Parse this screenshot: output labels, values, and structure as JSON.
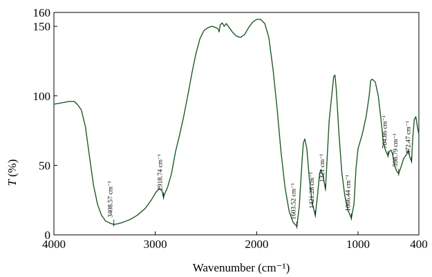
{
  "chart_data": {
    "type": "line",
    "title": "",
    "xlabel": "Wavenumber (cm⁻¹)",
    "ylabel_symbol": "T",
    "ylabel_unit": "(%)",
    "xlim": [
      4000,
      400
    ],
    "ylim": [
      0,
      160
    ],
    "x_ticks": [
      4000,
      3000,
      2000,
      1000,
      400
    ],
    "y_ticks": [
      0,
      50,
      100,
      150,
      160
    ],
    "grid": false,
    "series": [
      {
        "color": "#1f5a26",
        "points": [
          [
            4000,
            94
          ],
          [
            3920,
            95
          ],
          [
            3850,
            96
          ],
          [
            3800,
            96
          ],
          [
            3770,
            94
          ],
          [
            3730,
            90
          ],
          [
            3690,
            78
          ],
          [
            3650,
            57
          ],
          [
            3610,
            36
          ],
          [
            3570,
            22
          ],
          [
            3530,
            14
          ],
          [
            3490,
            10
          ],
          [
            3450,
            8.5
          ],
          [
            3408.57,
            7.5
          ],
          [
            3370,
            8
          ],
          [
            3320,
            9
          ],
          [
            3250,
            11
          ],
          [
            3180,
            14
          ],
          [
            3100,
            19
          ],
          [
            3040,
            25
          ],
          [
            2990,
            31
          ],
          [
            2960,
            33
          ],
          [
            2935,
            32
          ],
          [
            2918.74,
            27
          ],
          [
            2905,
            30
          ],
          [
            2880,
            34
          ],
          [
            2840,
            44
          ],
          [
            2800,
            60
          ],
          [
            2760,
            72
          ],
          [
            2720,
            85
          ],
          [
            2680,
            100
          ],
          [
            2640,
            116
          ],
          [
            2600,
            130
          ],
          [
            2560,
            141
          ],
          [
            2520,
            147
          ],
          [
            2480,
            149
          ],
          [
            2440,
            150
          ],
          [
            2400,
            149
          ],
          [
            2380,
            148
          ],
          [
            2370,
            146
          ],
          [
            2360,
            151
          ],
          [
            2340,
            152.5
          ],
          [
            2320,
            150
          ],
          [
            2300,
            152
          ],
          [
            2280,
            150
          ],
          [
            2240,
            146
          ],
          [
            2200,
            143
          ],
          [
            2160,
            142
          ],
          [
            2120,
            144
          ],
          [
            2080,
            149
          ],
          [
            2040,
            153
          ],
          [
            2000,
            155
          ],
          [
            1960,
            155
          ],
          [
            1920,
            152
          ],
          [
            1880,
            142
          ],
          [
            1840,
            120
          ],
          [
            1800,
            92
          ],
          [
            1760,
            60
          ],
          [
            1720,
            34
          ],
          [
            1680,
            17
          ],
          [
            1640,
            9
          ],
          [
            1603.52,
            6
          ],
          [
            1580,
            20
          ],
          [
            1555,
            50
          ],
          [
            1540,
            66
          ],
          [
            1525,
            69
          ],
          [
            1505,
            62
          ],
          [
            1480,
            40
          ],
          [
            1450,
            22
          ],
          [
            1421.28,
            14
          ],
          [
            1400,
            28
          ],
          [
            1380,
            44
          ],
          [
            1365,
            47
          ],
          [
            1345,
            42
          ],
          [
            1321,
            33
          ],
          [
            1305,
            55
          ],
          [
            1285,
            82
          ],
          [
            1260,
            100
          ],
          [
            1240,
            114
          ],
          [
            1228,
            115
          ],
          [
            1215,
            105
          ],
          [
            1190,
            75
          ],
          [
            1160,
            45
          ],
          [
            1130,
            28
          ],
          [
            1100,
            18
          ],
          [
            1066.44,
            12
          ],
          [
            1040,
            22
          ],
          [
            1020,
            48
          ],
          [
            1000,
            62
          ],
          [
            960,
            72
          ],
          [
            920,
            85
          ],
          [
            890,
            100
          ],
          [
            875,
            111
          ],
          [
            860,
            112
          ],
          [
            830,
            110
          ],
          [
            800,
            100
          ],
          [
            775,
            84
          ],
          [
            750,
            66
          ],
          [
            725,
            60
          ],
          [
            704.86,
            57
          ],
          [
            690,
            60
          ],
          [
            675,
            61
          ],
          [
            660,
            58
          ],
          [
            640,
            50
          ],
          [
            620,
            46
          ],
          [
            598.79,
            44
          ],
          [
            580,
            48
          ],
          [
            550,
            55
          ],
          [
            520,
            58
          ],
          [
            505,
            61
          ],
          [
            490,
            56
          ],
          [
            472.47,
            53
          ],
          [
            460,
            70
          ],
          [
            445,
            83
          ],
          [
            430,
            85
          ],
          [
            415,
            78
          ],
          [
            400,
            72
          ]
        ]
      }
    ],
    "annotations": [
      {
        "text": "3408.57 cm⁻¹",
        "x": 3408.57,
        "y": 7.5
      },
      {
        "text": "2918.74 cm⁻¹",
        "x": 2918.74,
        "y": 27
      },
      {
        "text": "1603.52 cm⁻¹",
        "x": 1603.52,
        "y": 6
      },
      {
        "text": "1421.28 cm⁻¹",
        "x": 1421.28,
        "y": 14
      },
      {
        "text": "1321 cm⁻¹",
        "x": 1321,
        "y": 33
      },
      {
        "text": "1066.44 cm⁻¹",
        "x": 1066.44,
        "y": 12
      },
      {
        "text": "704.86 cm⁻¹",
        "x": 704.86,
        "y": 57
      },
      {
        "text": "598.79 cm⁻¹",
        "x": 598.79,
        "y": 44
      },
      {
        "text": "472.47 cm⁻¹",
        "x": 472.47,
        "y": 53
      }
    ]
  }
}
